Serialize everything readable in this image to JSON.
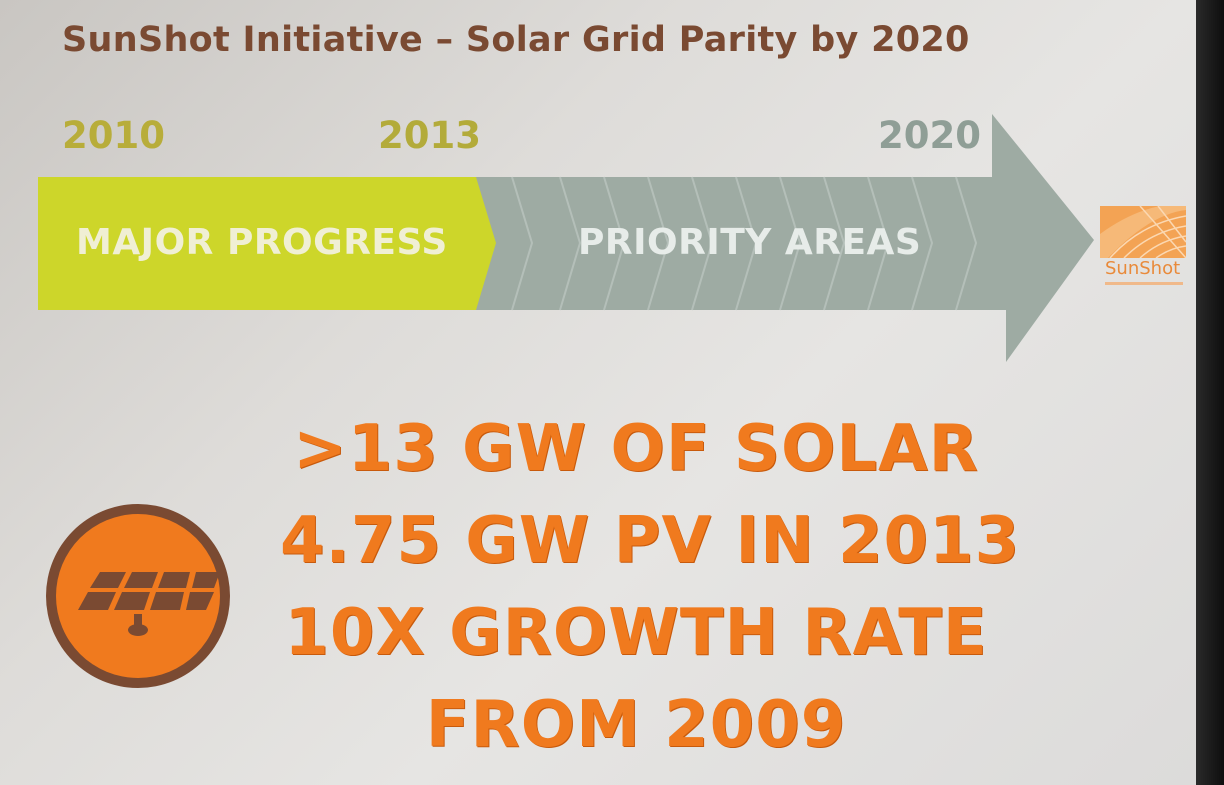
{
  "title": "SunShot Initiative – Solar Grid Parity by 2020",
  "timeline": {
    "years": [
      "2010",
      "2013",
      "2020"
    ],
    "phases": [
      {
        "label": "MAJOR PROGRESS",
        "color": "#cdd629"
      },
      {
        "label": "PRIORITY AREAS",
        "color": "#9daaa2"
      }
    ]
  },
  "logo": {
    "text": "SunShot",
    "color": "#e98a3a"
  },
  "icon": {
    "name": "solar-panel-icon",
    "circle_color": "#f07a1e",
    "ring_color": "#7a4a32"
  },
  "stats": [
    ">13 GW OF SOLAR",
    "4.75 GW PV IN 2013",
    "10X GROWTH RATE",
    "FROM 2009"
  ],
  "colors": {
    "title": "#7a4a32",
    "stat_text": "#f07a1e"
  }
}
